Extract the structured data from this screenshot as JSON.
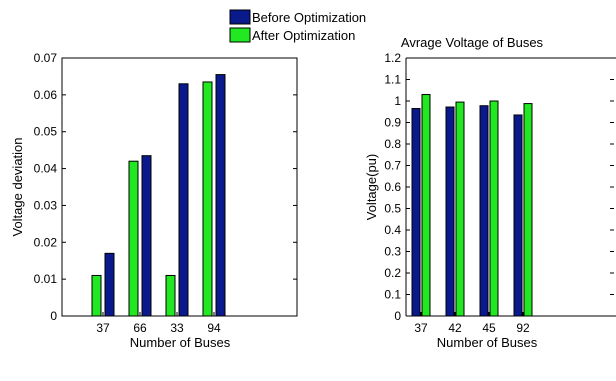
{
  "legend": {
    "entries": [
      {
        "label": "Before Optimization",
        "color": "#0a1a8c"
      },
      {
        "label": "After Optimization",
        "color": "#22e822"
      }
    ]
  },
  "chart_data": [
    {
      "type": "bar",
      "title": "",
      "xlabel": "Number of Buses",
      "ylabel": "Voltage  deviation",
      "categories": [
        "37",
        "66",
        "33",
        "94"
      ],
      "ylim": [
        0,
        0.07
      ],
      "yticks": [
        0,
        0.01,
        0.02,
        0.03,
        0.04,
        0.05,
        0.06,
        0.07
      ],
      "ytick_labels": [
        "0",
        "0.01",
        "0.02",
        "0.03",
        "0.04",
        "0.05",
        "0.06",
        "0.07"
      ],
      "series": [
        {
          "name": "After Optimization",
          "color": "#22e822",
          "values": [
            0.011,
            0.042,
            0.011,
            0.0635
          ]
        },
        {
          "name": "Before Optimization",
          "color": "#0a1a8c",
          "values": [
            0.017,
            0.0435,
            0.063,
            0.0655
          ]
        }
      ],
      "grid": false
    },
    {
      "type": "bar",
      "title": "Avrage Voltage of Buses",
      "xlabel": "Number of Buses",
      "ylabel": "Voltage(pu)",
      "categories": [
        "37",
        "42",
        "45",
        "92"
      ],
      "ylim": [
        0,
        1.2
      ],
      "yticks": [
        0,
        0.1,
        0.2,
        0.3,
        0.4,
        0.5,
        0.6,
        0.7,
        0.8,
        0.9,
        1,
        1.1,
        1.2
      ],
      "ytick_labels": [
        "0",
        "0.1",
        "0.2",
        "0.3",
        "0.4",
        "0.5",
        "0.6",
        "0.7",
        "0.8",
        "0.9",
        "1",
        "1.1",
        "1.2"
      ],
      "series": [
        {
          "name": "Before Optimization",
          "color": "#0a1a8c",
          "values": [
            0.965,
            0.972,
            0.978,
            0.935
          ]
        },
        {
          "name": "After Optimization",
          "color": "#22e822",
          "values": [
            1.03,
            0.995,
            1.0,
            0.988
          ]
        }
      ],
      "grid": false
    }
  ]
}
